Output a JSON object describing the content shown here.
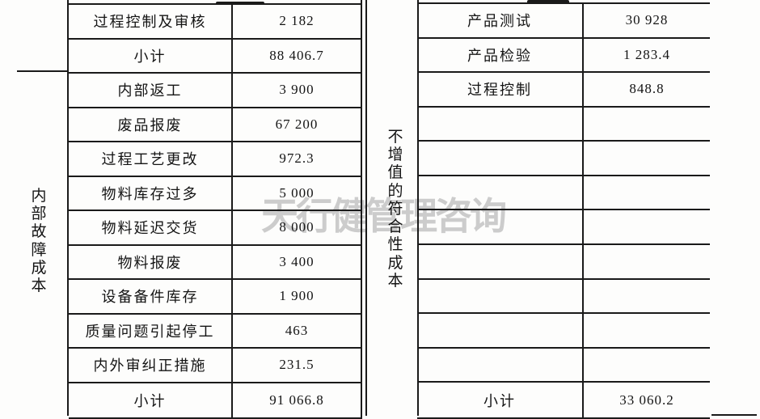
{
  "watermark": {
    "text": "天行健管理咨询",
    "color": "#cccccc"
  },
  "left_table": {
    "category": "内部故障成本",
    "rows": [
      {
        "label": "过程控制及审核",
        "value": "2 182"
      },
      {
        "label": "小计",
        "value": "88 406.7"
      },
      {
        "label": "内部返工",
        "value": "3 900"
      },
      {
        "label": "废品报废",
        "value": "67 200"
      },
      {
        "label": "过程工艺更改",
        "value": "972.3"
      },
      {
        "label": "物料库存过多",
        "value": "5 000"
      },
      {
        "label": "物料延迟交货",
        "value": "8 000"
      },
      {
        "label": "物料报废",
        "value": "3 400"
      },
      {
        "label": "设备备件库存",
        "value": "1 900"
      },
      {
        "label": "质量问题引起停工",
        "value": "463"
      },
      {
        "label": "内外审纠正措施",
        "value": "231.5"
      },
      {
        "label": "小计",
        "value": "91 066.8"
      }
    ]
  },
  "right_table": {
    "category": "不增值的符合性成本",
    "rows": [
      {
        "label": "产品测试",
        "value": "30 928"
      },
      {
        "label": "产品检验",
        "value": "1 283.4"
      },
      {
        "label": "过程控制",
        "value": "848.8"
      },
      {
        "label": "",
        "value": ""
      },
      {
        "label": "",
        "value": ""
      },
      {
        "label": "",
        "value": ""
      },
      {
        "label": "",
        "value": ""
      },
      {
        "label": "",
        "value": ""
      },
      {
        "label": "",
        "value": ""
      },
      {
        "label": "",
        "value": ""
      },
      {
        "label": "",
        "value": ""
      },
      {
        "label": "小计",
        "value": "33 060.2"
      }
    ]
  }
}
